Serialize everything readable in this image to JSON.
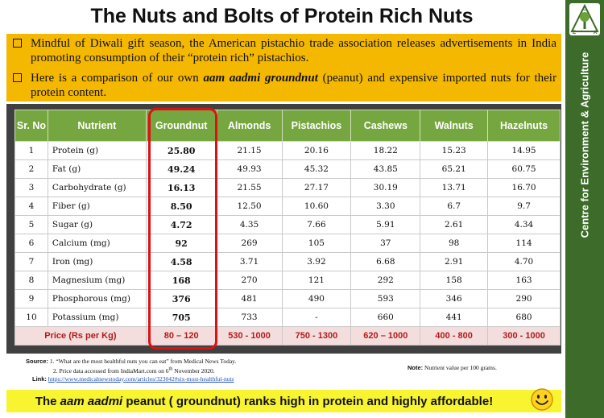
{
  "title": "The Nuts and Bolts of Protein Rich Nuts",
  "sidebar_text": "Centre for Environment & Agriculture",
  "logo": {
    "letters": [
      "C",
      "E",
      "A"
    ],
    "icon": "tree-logo-icon",
    "color": "#3d6b2a"
  },
  "intro": {
    "bullet1": "Mindful of Diwali gift season, the American pistachio trade association releases advertisements in India promoting consumption of their “protein rich” pistachios.",
    "bullet2_prefix": "Here is a comparison of our own ",
    "bullet2_emph": "aam aadmi groundnut",
    "bullet2_suffix": " (peanut) and expensive imported nuts for their protein content."
  },
  "table": {
    "headers": [
      "Sr. No",
      "Nutrient",
      "Groundnut",
      "Almonds",
      "Pistachios",
      "Cashews",
      "Walnuts",
      "Hazelnuts"
    ],
    "rows": [
      [
        "1",
        "Protein (g)",
        "25.80",
        "21.15",
        "20.16",
        "18.22",
        "15.23",
        "14.95"
      ],
      [
        "2",
        "Fat (g)",
        "49.24",
        "49.93",
        "45.32",
        "43.85",
        "65.21",
        "60.75"
      ],
      [
        "3",
        "Carbohydrate (g)",
        "16.13",
        "21.55",
        "27.17",
        "30.19",
        "13.71",
        "16.70"
      ],
      [
        "4",
        "Fiber (g)",
        "8.50",
        "12.50",
        "10.60",
        "3.30",
        "6.7",
        "9.7"
      ],
      [
        "5",
        "Sugar (g)",
        "4.72",
        "4.35",
        "7.66",
        "5.91",
        "2.61",
        "4.34"
      ],
      [
        "6",
        "Calcium (mg)",
        "92",
        "269",
        "105",
        "37",
        "98",
        "114"
      ],
      [
        "7",
        "Iron (mg)",
        "4.58",
        "3.71",
        "3.92",
        "6.68",
        "2.91",
        "4.70"
      ],
      [
        "8",
        "Magnesium (mg)",
        "168",
        "270",
        "121",
        "292",
        "158",
        "163"
      ],
      [
        "9",
        "Phosphorous (mg)",
        "376",
        "481",
        "490",
        "593",
        "346",
        "290"
      ],
      [
        "10",
        "Potassium (mg)",
        "705",
        "733",
        "-",
        "660",
        "441",
        "680"
      ]
    ],
    "price_row": [
      "Price (Rs per Kg)",
      "80 – 120",
      "530 - 1000",
      "750 - 1300",
      "620 – 1000",
      "400 - 800",
      "300 - 1000"
    ],
    "colors": {
      "header": "#76a640",
      "price_text": "#b01c1c",
      "price_bg": "#f4dedd",
      "highlight": "#dd1111"
    }
  },
  "sources": {
    "label": "Source:",
    "line1": "1. “What are the most healthful nuts you can eat” from Medical News Today.",
    "line2_prefix": "2. Price data accessed from IndiaMart.com on 6",
    "line2_sup": "th",
    "line2_suffix": " November 2020.",
    "link_label": "Link:",
    "link": "https://www.medicalnewstoday.com/articles/323042#six-most-healthful-nuts"
  },
  "note": {
    "label": "Note:",
    "text": "Nutrient value per 100 grams."
  },
  "footer": {
    "prefix": "The ",
    "emph": "aam aadmi",
    "suffix": " peanut ( groundnut) ranks high in protein and highly affordable!",
    "icon": "smiley-icon"
  }
}
